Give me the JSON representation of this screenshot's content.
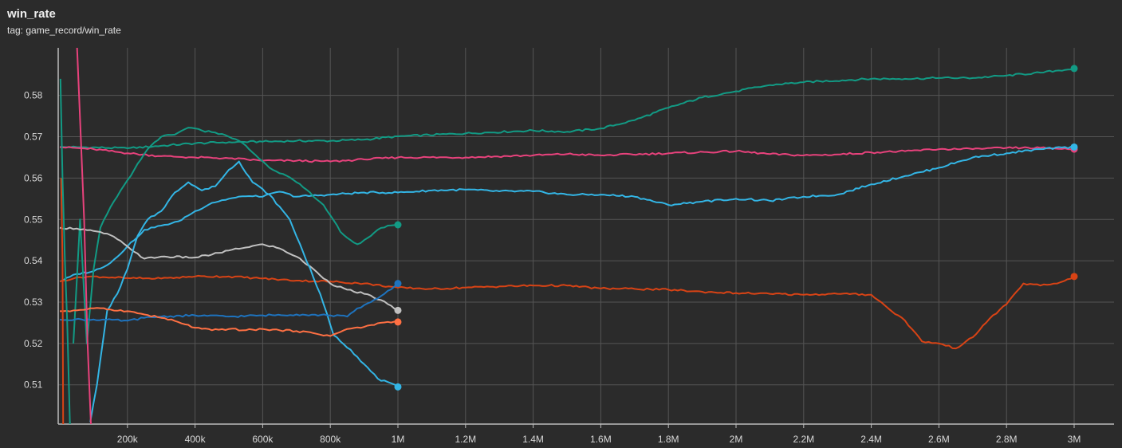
{
  "header": {
    "title": "win_rate",
    "subtitle": "tag: game_record/win_rate"
  },
  "chart_data": {
    "type": "line",
    "title": "win_rate",
    "subtitle": "tag: game_record/win_rate",
    "xlabel": "",
    "ylabel": "",
    "xlim": [
      0,
      3100000
    ],
    "ylim": [
      0.5005,
      0.5915
    ],
    "grid": true,
    "x_ticks": [
      {
        "value": 200000,
        "label": "200k"
      },
      {
        "value": 400000,
        "label": "400k"
      },
      {
        "value": 600000,
        "label": "600k"
      },
      {
        "value": 800000,
        "label": "800k"
      },
      {
        "value": 1000000,
        "label": "1M"
      },
      {
        "value": 1200000,
        "label": "1.2M"
      },
      {
        "value": 1400000,
        "label": "1.4M"
      },
      {
        "value": 1600000,
        "label": "1.6M"
      },
      {
        "value": 1800000,
        "label": "1.8M"
      },
      {
        "value": 2000000,
        "label": "2M"
      },
      {
        "value": 2200000,
        "label": "2.2M"
      },
      {
        "value": 2400000,
        "label": "2.4M"
      },
      {
        "value": 2600000,
        "label": "2.6M"
      },
      {
        "value": 2800000,
        "label": "2.8M"
      },
      {
        "value": 3000000,
        "label": "3M"
      }
    ],
    "y_ticks": [
      {
        "value": 0.51,
        "label": "0.51"
      },
      {
        "value": 0.52,
        "label": "0.52"
      },
      {
        "value": 0.53,
        "label": "0.53"
      },
      {
        "value": 0.54,
        "label": "0.54"
      },
      {
        "value": 0.55,
        "label": "0.55"
      },
      {
        "value": 0.56,
        "label": "0.56"
      },
      {
        "value": 0.57,
        "label": "0.57"
      },
      {
        "value": 0.58,
        "label": "0.58"
      }
    ],
    "series": [
      {
        "color": "#129a84",
        "end_marker": true,
        "points": [
          [
            0,
            0.5675
          ],
          [
            50000,
            0.5675
          ],
          [
            200000,
            0.5672
          ],
          [
            300000,
            0.5678
          ],
          [
            400000,
            0.5684
          ],
          [
            500000,
            0.5687
          ],
          [
            600000,
            0.5688
          ],
          [
            700000,
            0.569
          ],
          [
            800000,
            0.569
          ],
          [
            900000,
            0.5693
          ],
          [
            1000000,
            0.5701
          ],
          [
            1200000,
            0.5708
          ],
          [
            1400000,
            0.5715
          ],
          [
            1500000,
            0.5712
          ],
          [
            1600000,
            0.572
          ],
          [
            1700000,
            0.574
          ],
          [
            1800000,
            0.577
          ],
          [
            1900000,
            0.5795
          ],
          [
            2000000,
            0.581
          ],
          [
            2100000,
            0.5825
          ],
          [
            2200000,
            0.5832
          ],
          [
            2400000,
            0.584
          ],
          [
            2500000,
            0.584
          ],
          [
            2600000,
            0.5842
          ],
          [
            2700000,
            0.5842
          ],
          [
            2800000,
            0.5848
          ],
          [
            2900000,
            0.5855
          ],
          [
            3000000,
            0.5865
          ]
        ]
      },
      {
        "color": "#e8427c",
        "end_marker": true,
        "points": [
          [
            0,
            0.5675
          ],
          [
            100000,
            0.567
          ],
          [
            200000,
            0.566
          ],
          [
            300000,
            0.5653
          ],
          [
            400000,
            0.565
          ],
          [
            500000,
            0.5648
          ],
          [
            600000,
            0.5642
          ],
          [
            700000,
            0.5642
          ],
          [
            800000,
            0.564
          ],
          [
            900000,
            0.5645
          ],
          [
            1000000,
            0.565
          ],
          [
            1200000,
            0.565
          ],
          [
            1400000,
            0.5655
          ],
          [
            1500000,
            0.5658
          ],
          [
            1600000,
            0.5655
          ],
          [
            1800000,
            0.566
          ],
          [
            2000000,
            0.5665
          ],
          [
            2100000,
            0.5658
          ],
          [
            2200000,
            0.5655
          ],
          [
            2300000,
            0.5657
          ],
          [
            2400000,
            0.5662
          ],
          [
            2500000,
            0.5665
          ],
          [
            2600000,
            0.567
          ],
          [
            2700000,
            0.567
          ],
          [
            2800000,
            0.5673
          ],
          [
            2900000,
            0.5673
          ],
          [
            3000000,
            0.567
          ]
        ]
      },
      {
        "color": "#33b5e5",
        "end_marker": true,
        "points": [
          [
            0,
            0.535
          ],
          [
            50000,
            0.5368
          ],
          [
            100000,
            0.5375
          ],
          [
            150000,
            0.5395
          ],
          [
            200000,
            0.5435
          ],
          [
            250000,
            0.5475
          ],
          [
            300000,
            0.5485
          ],
          [
            350000,
            0.5495
          ],
          [
            400000,
            0.552
          ],
          [
            450000,
            0.554
          ],
          [
            500000,
            0.555
          ],
          [
            550000,
            0.5556
          ],
          [
            600000,
            0.5555
          ],
          [
            650000,
            0.5567
          ],
          [
            700000,
            0.5555
          ],
          [
            800000,
            0.556
          ],
          [
            900000,
            0.5565
          ],
          [
            1000000,
            0.5565
          ],
          [
            1100000,
            0.557
          ],
          [
            1200000,
            0.5572
          ],
          [
            1300000,
            0.5568
          ],
          [
            1400000,
            0.5568
          ],
          [
            1500000,
            0.556
          ],
          [
            1600000,
            0.556
          ],
          [
            1700000,
            0.5555
          ],
          [
            1800000,
            0.5535
          ],
          [
            1900000,
            0.5543
          ],
          [
            2000000,
            0.555
          ],
          [
            2100000,
            0.5545
          ],
          [
            2200000,
            0.5555
          ],
          [
            2300000,
            0.556
          ],
          [
            2400000,
            0.5585
          ],
          [
            2500000,
            0.5605
          ],
          [
            2600000,
            0.5625
          ],
          [
            2700000,
            0.565
          ],
          [
            2800000,
            0.566
          ],
          [
            2900000,
            0.567
          ],
          [
            3000000,
            0.5675
          ]
        ]
      },
      {
        "color": "#d84315",
        "end_marker": true,
        "points": [
          [
            0,
            0.535
          ],
          [
            50000,
            0.536
          ],
          [
            100000,
            0.5362
          ],
          [
            200000,
            0.5358
          ],
          [
            300000,
            0.5357
          ],
          [
            400000,
            0.5362
          ],
          [
            500000,
            0.5362
          ],
          [
            600000,
            0.5357
          ],
          [
            700000,
            0.5352
          ],
          [
            800000,
            0.535
          ],
          [
            900000,
            0.5345
          ],
          [
            1000000,
            0.5335
          ],
          [
            1100000,
            0.5332
          ],
          [
            1200000,
            0.5335
          ],
          [
            1300000,
            0.5338
          ],
          [
            1400000,
            0.534
          ],
          [
            1500000,
            0.534
          ],
          [
            1600000,
            0.5333
          ],
          [
            1700000,
            0.5332
          ],
          [
            1800000,
            0.533
          ],
          [
            1900000,
            0.5325
          ],
          [
            2000000,
            0.5322
          ],
          [
            2100000,
            0.532
          ],
          [
            2200000,
            0.5318
          ],
          [
            2300000,
            0.532
          ],
          [
            2400000,
            0.5318
          ],
          [
            2450000,
            0.5285
          ],
          [
            2500000,
            0.5255
          ],
          [
            2550000,
            0.5205
          ],
          [
            2600000,
            0.52
          ],
          [
            2650000,
            0.5188
          ],
          [
            2700000,
            0.5215
          ],
          [
            2750000,
            0.526
          ],
          [
            2800000,
            0.5295
          ],
          [
            2850000,
            0.5345
          ],
          [
            2900000,
            0.534
          ],
          [
            2950000,
            0.5345
          ],
          [
            3000000,
            0.5362
          ]
        ]
      },
      {
        "color": "#129a84",
        "end_marker": true,
        "points": [
          [
            40000,
            0.52
          ],
          [
            60000,
            0.55
          ],
          [
            80000,
            0.52
          ],
          [
            100000,
            0.538
          ],
          [
            120000,
            0.548
          ],
          [
            150000,
            0.553
          ],
          [
            180000,
            0.557
          ],
          [
            220000,
            0.562
          ],
          [
            260000,
            0.567
          ],
          [
            300000,
            0.57
          ],
          [
            340000,
            0.5705
          ],
          [
            380000,
            0.5722
          ],
          [
            420000,
            0.5715
          ],
          [
            460000,
            0.571
          ],
          [
            500000,
            0.57
          ],
          [
            540000,
            0.5685
          ],
          [
            580000,
            0.5655
          ],
          [
            620000,
            0.5625
          ],
          [
            660000,
            0.561
          ],
          [
            700000,
            0.559
          ],
          [
            740000,
            0.5565
          ],
          [
            780000,
            0.5535
          ],
          [
            800000,
            0.551
          ],
          [
            830000,
            0.547
          ],
          [
            860000,
            0.545
          ],
          [
            880000,
            0.544
          ],
          [
            910000,
            0.5455
          ],
          [
            940000,
            0.5475
          ],
          [
            970000,
            0.5485
          ],
          [
            1000000,
            0.5487
          ]
        ]
      },
      {
        "color": "#c0c0c0",
        "end_marker": true,
        "points": [
          [
            0,
            0.548
          ],
          [
            50000,
            0.5478
          ],
          [
            100000,
            0.5472
          ],
          [
            150000,
            0.5462
          ],
          [
            200000,
            0.5435
          ],
          [
            250000,
            0.5405
          ],
          [
            300000,
            0.541
          ],
          [
            400000,
            0.5408
          ],
          [
            450000,
            0.5415
          ],
          [
            500000,
            0.5425
          ],
          [
            550000,
            0.5432
          ],
          [
            600000,
            0.544
          ],
          [
            650000,
            0.543
          ],
          [
            700000,
            0.541
          ],
          [
            750000,
            0.538
          ],
          [
            800000,
            0.5345
          ],
          [
            850000,
            0.533
          ],
          [
            900000,
            0.532
          ],
          [
            950000,
            0.5305
          ],
          [
            1000000,
            0.528
          ]
        ]
      },
      {
        "color": "#33b5e5",
        "end_marker": true,
        "points": [
          [
            90000,
            0.501
          ],
          [
            110000,
            0.51
          ],
          [
            140000,
            0.528
          ],
          [
            170000,
            0.532
          ],
          [
            200000,
            0.538
          ],
          [
            230000,
            0.546
          ],
          [
            260000,
            0.55
          ],
          [
            300000,
            0.552
          ],
          [
            340000,
            0.5565
          ],
          [
            380000,
            0.559
          ],
          [
            420000,
            0.557
          ],
          [
            460000,
            0.558
          ],
          [
            500000,
            0.562
          ],
          [
            530000,
            0.564
          ],
          [
            570000,
            0.559
          ],
          [
            620000,
            0.556
          ],
          [
            680000,
            0.55
          ],
          [
            720000,
            0.542
          ],
          [
            770000,
            0.532
          ],
          [
            810000,
            0.522
          ],
          [
            860000,
            0.5185
          ],
          [
            900000,
            0.515
          ],
          [
            940000,
            0.5115
          ],
          [
            1000000,
            0.5095
          ]
        ]
      },
      {
        "color": "#1e73be",
        "end_marker": true,
        "points": [
          [
            0,
            0.5258
          ],
          [
            100000,
            0.5258
          ],
          [
            200000,
            0.5255
          ],
          [
            250000,
            0.5262
          ],
          [
            300000,
            0.5265
          ],
          [
            400000,
            0.5268
          ],
          [
            500000,
            0.5265
          ],
          [
            600000,
            0.5268
          ],
          [
            700000,
            0.527
          ],
          [
            800000,
            0.5268
          ],
          [
            850000,
            0.5265
          ],
          [
            880000,
            0.5285
          ],
          [
            920000,
            0.53
          ],
          [
            960000,
            0.532
          ],
          [
            1000000,
            0.5345
          ]
        ]
      },
      {
        "color": "#ff7043",
        "end_marker": true,
        "points": [
          [
            0,
            0.5278
          ],
          [
            50000,
            0.528
          ],
          [
            100000,
            0.5285
          ],
          [
            150000,
            0.5282
          ],
          [
            200000,
            0.5278
          ],
          [
            250000,
            0.527
          ],
          [
            300000,
            0.5262
          ],
          [
            350000,
            0.5252
          ],
          [
            400000,
            0.5238
          ],
          [
            450000,
            0.5232
          ],
          [
            500000,
            0.5235
          ],
          [
            550000,
            0.5232
          ],
          [
            600000,
            0.5235
          ],
          [
            650000,
            0.5232
          ],
          [
            700000,
            0.523
          ],
          [
            750000,
            0.5225
          ],
          [
            800000,
            0.5218
          ],
          [
            850000,
            0.5235
          ],
          [
            900000,
            0.524
          ],
          [
            950000,
            0.525
          ],
          [
            1000000,
            0.5252
          ]
        ]
      },
      {
        "color": "#e8427c",
        "end_marker": false,
        "points": [
          [
            40000,
            0.61
          ],
          [
            52000,
            0.59
          ],
          [
            62000,
            0.57
          ],
          [
            72000,
            0.55
          ],
          [
            82000,
            0.52
          ],
          [
            92000,
            0.5005
          ]
        ]
      },
      {
        "color": "#d84315",
        "end_marker": false,
        "points": [
          [
            4000,
            0.56
          ],
          [
            8000,
            0.54
          ],
          [
            10000,
            0.5005
          ]
        ]
      },
      {
        "color": "#129a84",
        "end_marker": false,
        "points": [
          [
            2000,
            0.584
          ],
          [
            8000,
            0.56
          ],
          [
            15000,
            0.54
          ],
          [
            22000,
            0.525
          ],
          [
            30000,
            0.5005
          ]
        ]
      }
    ]
  }
}
